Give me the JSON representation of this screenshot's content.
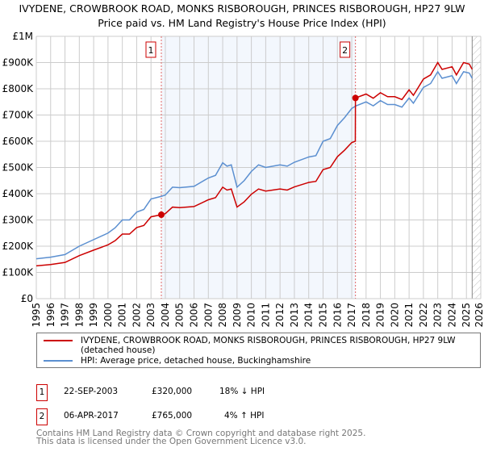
{
  "chart_data": {
    "type": "line",
    "title": "IVYDENE, CROWBROOK ROAD, MONKS RISBOROUGH, PRINCES RISBOROUGH, HP27 9LW",
    "subtitle": "Price paid vs. HM Land Registry's House Price Index (HPI)",
    "xlim": [
      1995,
      2026
    ],
    "ylim": [
      0,
      1000000
    ],
    "x_ticks": [
      "1995",
      "1996",
      "1997",
      "1998",
      "1999",
      "2000",
      "2001",
      "2002",
      "2003",
      "2004",
      "2005",
      "2006",
      "2007",
      "2008",
      "2009",
      "2010",
      "2011",
      "2012",
      "2013",
      "2014",
      "2015",
      "2016",
      "2017",
      "2018",
      "2019",
      "2020",
      "2021",
      "2022",
      "2023",
      "2024",
      "2025",
      "2026"
    ],
    "y_ticks": [
      {
        "v": 0,
        "l": "£0"
      },
      {
        "v": 100000,
        "l": "£100K"
      },
      {
        "v": 200000,
        "l": "£200K"
      },
      {
        "v": 300000,
        "l": "£300K"
      },
      {
        "v": 400000,
        "l": "£400K"
      },
      {
        "v": 500000,
        "l": "£500K"
      },
      {
        "v": 600000,
        "l": "£600K"
      },
      {
        "v": 700000,
        "l": "£700K"
      },
      {
        "v": 800000,
        "l": "£800K"
      },
      {
        "v": 900000,
        "l": "£900K"
      },
      {
        "v": 1000000,
        "l": "£1M"
      }
    ],
    "grid": true,
    "shaded_range": [
      2003.72,
      2017.26
    ],
    "hatched_from": 2025.4,
    "series": [
      {
        "name": "IVYDENE, CROWBROOK ROAD, MONKS RISBOROUGH, PRINCES RISBOROUGH, HP27 9LW (detached house)",
        "color": "#cc0000",
        "x": [
          1995,
          1996,
          1997,
          1998,
          1999,
          2000,
          2000.5,
          2001,
          2001.5,
          2002,
          2002.5,
          2003,
          2003.72,
          2004,
          2004.5,
          2005,
          2006,
          2007,
          2007.5,
          2008,
          2008.3,
          2008.6,
          2009,
          2009.5,
          2010,
          2010.5,
          2011,
          2012,
          2012.5,
          2013,
          2014,
          2014.5,
          2015,
          2015.5,
          2016,
          2016.5,
          2017,
          2017.25,
          2017.26,
          2018,
          2018.5,
          2019,
          2019.5,
          2020,
          2020.5,
          2021,
          2021.3,
          2022,
          2022.5,
          2023,
          2023.3,
          2024,
          2024.3,
          2024.8,
          2025.2,
          2025.4
        ],
        "y": [
          125,
          130,
          138,
          164,
          185,
          205,
          221,
          246,
          246,
          271,
          279,
          312,
          320,
          324,
          349,
          347,
          351,
          377,
          385,
          425,
          414,
          418,
          349,
          369,
          398,
          418,
          410,
          418,
          414,
          426,
          443,
          447,
          492,
          500,
          541,
          566,
          595,
          600,
          765,
          780,
          764,
          785,
          770,
          770,
          759,
          796,
          775,
          837,
          853,
          900,
          874,
          884,
          853,
          900,
          894,
          874
        ]
      },
      {
        "name": "HPI: Average price, detached house, Buckinghamshire",
        "color": "#5b8fd0",
        "x": [
          1995,
          1996,
          1997,
          1998,
          1999,
          2000,
          2000.5,
          2001,
          2001.5,
          2002,
          2002.5,
          2003,
          2003.72,
          2004,
          2004.5,
          2005,
          2006,
          2007,
          2007.5,
          2008,
          2008.3,
          2008.6,
          2009,
          2009.5,
          2010,
          2010.5,
          2011,
          2012,
          2012.5,
          2013,
          2014,
          2014.5,
          2015,
          2015.5,
          2016,
          2016.5,
          2017,
          2017.3,
          2018,
          2018.5,
          2019,
          2019.5,
          2020,
          2020.5,
          2021,
          2021.3,
          2022,
          2022.5,
          2023,
          2023.3,
          2024,
          2024.3,
          2024.8,
          2025.2,
          2025.4
        ],
        "y": [
          152,
          158,
          168,
          200,
          225,
          250,
          270,
          300,
          300,
          330,
          340,
          380,
          390,
          395,
          425,
          423,
          428,
          460,
          470,
          518,
          505,
          510,
          425,
          450,
          485,
          510,
          500,
          510,
          505,
          520,
          540,
          545,
          600,
          610,
          660,
          690,
          725,
          735,
          750,
          735,
          755,
          740,
          740,
          730,
          765,
          745,
          805,
          820,
          865,
          840,
          850,
          820,
          865,
          860,
          840
        ]
      }
    ],
    "y_unit": "£K",
    "annotations": [
      {
        "label": "1",
        "x": 2003.72,
        "y": 320
      },
      {
        "label": "2",
        "x": 2017.26,
        "y": 765
      }
    ]
  },
  "legend": {
    "line1": "IVYDENE, CROWBROOK ROAD, MONKS RISBOROUGH, PRINCES RISBOROUGH, HP27 9LW (detached house)",
    "line2": "HPI: Average price, detached house, Buckinghamshire"
  },
  "transactions": [
    {
      "num": "1",
      "date": "22-SEP-2003",
      "price": "£320,000",
      "hpi": "18% ↓ HPI"
    },
    {
      "num": "2",
      "date": "06-APR-2017",
      "price": "£765,000",
      "hpi": "4% ↑ HPI"
    }
  ],
  "footer": {
    "line1": "Contains HM Land Registry data © Crown copyright and database right 2025.",
    "line2": "This data is licensed under the Open Government Licence v3.0."
  }
}
